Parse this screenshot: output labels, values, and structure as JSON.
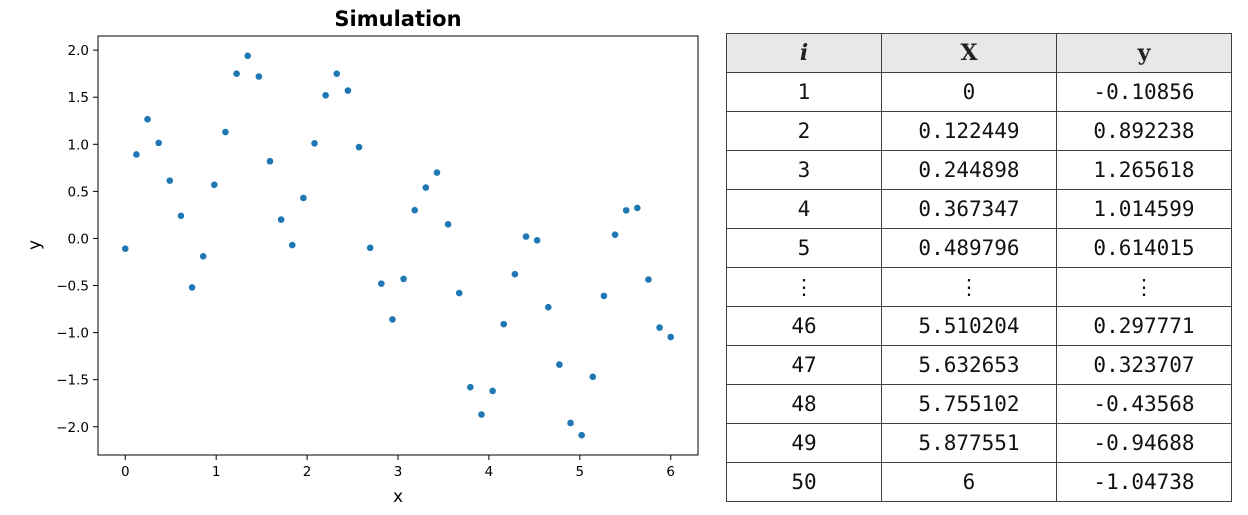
{
  "chart_data": {
    "type": "scatter",
    "title": "Simulation",
    "xlabel": "x",
    "ylabel": "y",
    "xlim": [
      -0.3,
      6.3
    ],
    "ylim": [
      -2.3,
      2.15
    ],
    "x_ticks": [
      0,
      1,
      2,
      3,
      4,
      5,
      6
    ],
    "x_tick_labels": [
      "0",
      "1",
      "2",
      "3",
      "4",
      "5",
      "6"
    ],
    "y_ticks": [
      2.0,
      1.5,
      1.0,
      0.5,
      0.0,
      -0.5,
      -1.0,
      -1.5,
      -2.0
    ],
    "y_tick_labels": [
      "2.0",
      "1.5",
      "1.0",
      "0.5",
      "0.0",
      "−0.5",
      "−1.0",
      "−1.5",
      "−2.0"
    ],
    "grid": false,
    "marker_color": "#1f77b4",
    "x": [
      0,
      0.1224,
      0.2449,
      0.3673,
      0.4898,
      0.6122,
      0.7347,
      0.8571,
      0.9796,
      1.102,
      1.2245,
      1.3469,
      1.4694,
      1.5918,
      1.7143,
      1.8367,
      1.9592,
      2.0816,
      2.2041,
      2.3265,
      2.449,
      2.5714,
      2.6939,
      2.8163,
      2.9388,
      3.0612,
      3.1837,
      3.3061,
      3.4286,
      3.551,
      3.6735,
      3.7959,
      3.9184,
      4.0408,
      4.1633,
      4.2857,
      4.4082,
      4.5306,
      4.6531,
      4.7755,
      4.898,
      5.0204,
      5.1429,
      5.2653,
      5.3878,
      5.5102,
      5.6327,
      5.7551,
      5.8776,
      6.0
    ],
    "y": [
      -0.109,
      0.892,
      1.266,
      1.015,
      0.614,
      0.24,
      -0.52,
      -0.19,
      0.57,
      1.13,
      1.75,
      1.94,
      1.72,
      0.82,
      0.2,
      -0.07,
      0.43,
      1.01,
      1.52,
      1.75,
      1.57,
      0.97,
      -0.1,
      -0.48,
      -0.86,
      -0.43,
      0.3,
      0.54,
      0.7,
      0.15,
      -0.58,
      -1.58,
      -1.87,
      -1.62,
      -0.91,
      -0.38,
      0.02,
      -0.02,
      -0.73,
      -1.34,
      -1.96,
      -2.09,
      -1.47,
      -0.61,
      0.04,
      0.298,
      0.324,
      -0.436,
      -0.947,
      -1.047
    ]
  },
  "table": {
    "headers": [
      "i",
      "X",
      "y"
    ],
    "rows": [
      [
        "1",
        "0",
        "-0.10856"
      ],
      [
        "2",
        "0.122449",
        "0.892238"
      ],
      [
        "3",
        "0.244898",
        "1.265618"
      ],
      [
        "4",
        "0.367347",
        "1.014599"
      ],
      [
        "5",
        "0.489796",
        "0.614015"
      ],
      [
        "⋮",
        "⋮",
        "⋮"
      ],
      [
        "46",
        "5.510204",
        "0.297771"
      ],
      [
        "47",
        "5.632653",
        "0.323707"
      ],
      [
        "48",
        "5.755102",
        "-0.43568"
      ],
      [
        "49",
        "5.877551",
        "-0.94688"
      ],
      [
        "50",
        "6",
        "-1.04738"
      ]
    ]
  }
}
